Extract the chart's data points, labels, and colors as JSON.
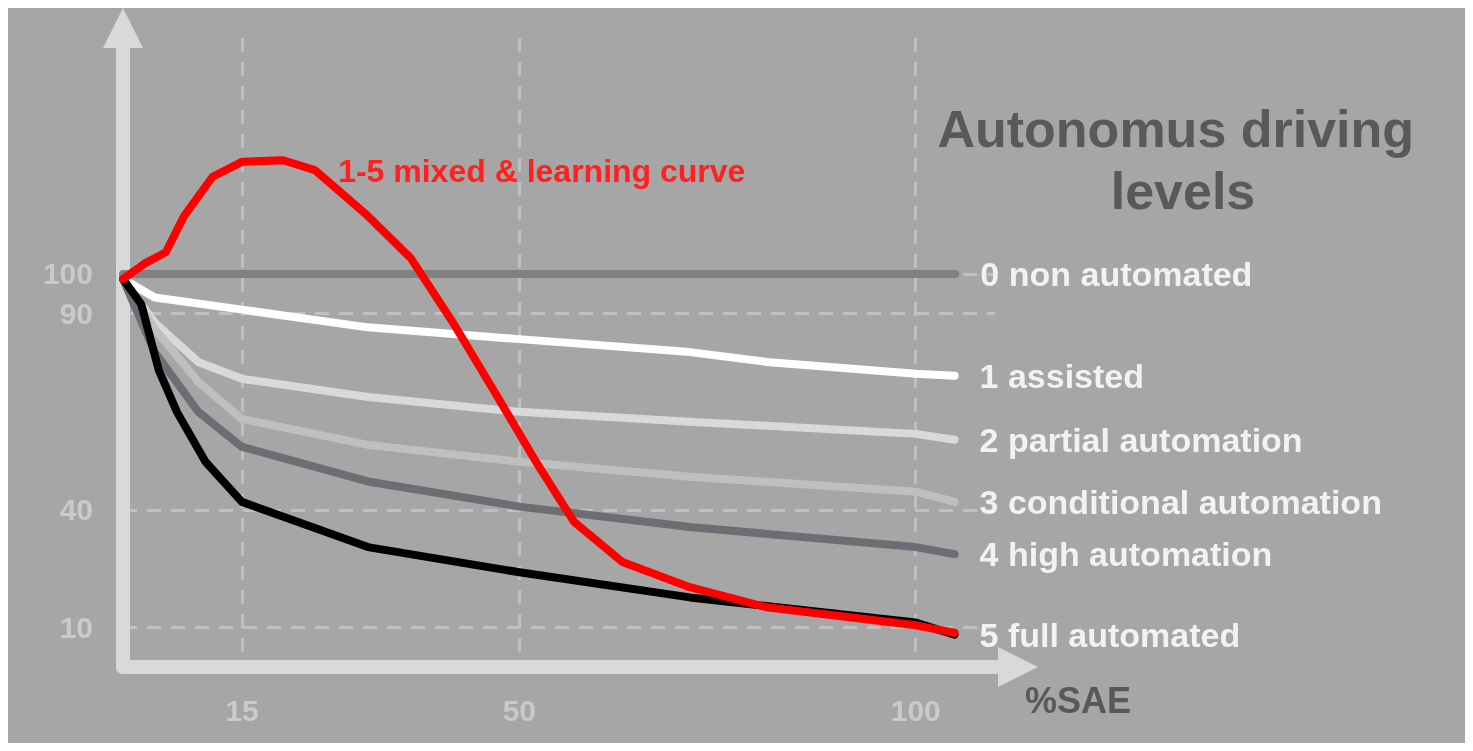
{
  "chart_data": {
    "type": "line",
    "title": "Autonomus driving levels",
    "xlabel": "%SAE",
    "xlim": [
      0,
      110
    ],
    "ylim": [
      0,
      160
    ],
    "xticks": [
      15,
      50,
      100
    ],
    "yticks": [
      10,
      40,
      90,
      100
    ],
    "annotations": [
      {
        "text": "1-5 mixed & learning curve",
        "x": 20.2,
        "y": 128.9
      }
    ],
    "grid": true,
    "legend": false,
    "marker": "none",
    "line_style": "solid",
    "series": [
      {
        "name": "0 non automated",
        "color": "#808080",
        "x": [
          0,
          105
        ],
        "values": [
          100,
          100
        ]
      },
      {
        "name": "1 assisted",
        "color": "#ffffff",
        "x": [
          0,
          4,
          15,
          30.9,
          50,
          71.5,
          81.2,
          100,
          104.9
        ],
        "values": [
          98.7,
          94.0,
          90.9,
          86.4,
          83.4,
          80.1,
          77.6,
          74.6,
          74.1
        ]
      },
      {
        "name": "2 partial automation",
        "color": "#d9d9d9",
        "x": [
          0,
          4,
          9.5,
          15,
          30.9,
          50,
          71.5,
          100,
          104.9
        ],
        "values": [
          98.7,
          87.6,
          77.6,
          73.3,
          68.7,
          64.9,
          62.4,
          59.3,
          57.8
        ]
      },
      {
        "name": "3 conditional automation",
        "color": "#bfbfbf",
        "x": [
          0,
          4,
          9.5,
          15,
          30.9,
          50,
          71.5,
          100,
          104.9
        ],
        "values": [
          98.7,
          86,
          72.5,
          63.1,
          56.5,
          52.2,
          48.4,
          44.6,
          42
        ]
      },
      {
        "name": "4 high automation",
        "color": "#6b6e73",
        "x": [
          0,
          4,
          9.5,
          15,
          30.9,
          50,
          71.5,
          100,
          104.9
        ],
        "values": [
          98.7,
          80.1,
          64.9,
          56,
          47.2,
          40.8,
          35.6,
          30.5,
          28.7
        ]
      },
      {
        "name": "5 full automated",
        "color": "#000000",
        "x": [
          0,
          2.3,
          4.5,
          6.8,
          10.4,
          15,
          30.9,
          50,
          71.5,
          100,
          104.9
        ],
        "values": [
          98.7,
          92.3,
          75.6,
          64.9,
          52.2,
          42,
          30.5,
          24.1,
          17.7,
          11.3,
          8.2
        ]
      },
      {
        "color": "#ff0000",
        "x": [
          0,
          2.7,
          5.4,
          7.7,
          11.3,
          15,
          20.2,
          24.2,
          30.9,
          36.3,
          41.6,
          46.9,
          52.1,
          56.9,
          63,
          71.5,
          81.2,
          100,
          104.9
        ],
        "values": [
          98.7,
          102.6,
          105.5,
          114.7,
          124.7,
          128.5,
          128.9,
          126.4,
          114.7,
          104,
          87.7,
          69.9,
          52.2,
          36.9,
          26.7,
          20.3,
          15.2,
          10.6,
          8.7
        ]
      }
    ]
  }
}
